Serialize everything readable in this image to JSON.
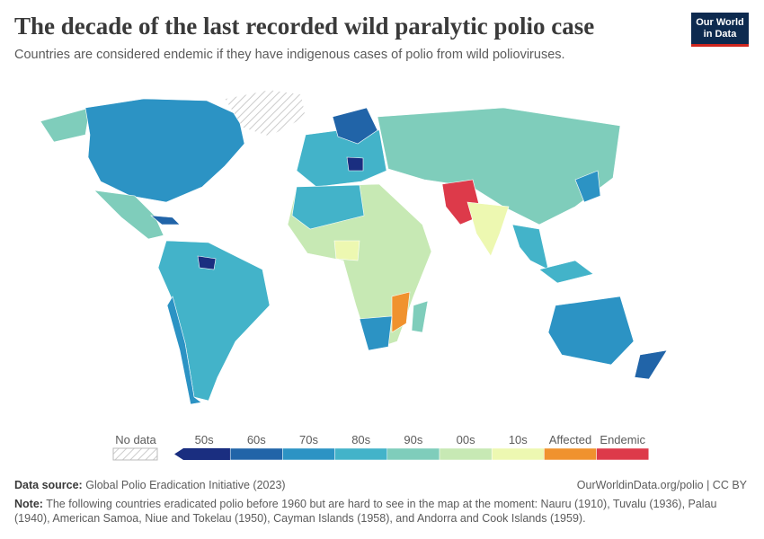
{
  "header": {
    "title": "The decade of the last recorded wild paralytic polio case",
    "subtitle": "Countries are considered endemic if they have indigenous cases of polio from wild polioviruses."
  },
  "logo": {
    "line1": "Our World",
    "line2": "in Data"
  },
  "legend": {
    "no_data": "No data",
    "items": [
      {
        "label": "50s",
        "color": "#1a2e80"
      },
      {
        "label": "60s",
        "color": "#2164a8"
      },
      {
        "label": "70s",
        "color": "#2c93c4"
      },
      {
        "label": "80s",
        "color": "#43b3c9"
      },
      {
        "label": "90s",
        "color": "#7fcdbb"
      },
      {
        "label": "00s",
        "color": "#c7e9b4"
      },
      {
        "label": "10s",
        "color": "#edf8b1"
      },
      {
        "label": "Affected",
        "color": "#f0922e"
      },
      {
        "label": "Endemic",
        "color": "#dd3a4a"
      }
    ]
  },
  "footer": {
    "source_label": "Data source:",
    "source": "Global Polio Eradication Initiative (2023)",
    "url": "OurWorldinData.org/polio | CC BY",
    "note_label": "Note:",
    "note": "The following countries eradicated polio before 1960 but are hard to see in the map at the moment: Nauru (1910), Tuvalu (1936), Palau (1940), American Samoa, Niue and Tokelau (1950), Cayman Islands (1958), and Andorra and Cook Islands (1959)."
  }
}
